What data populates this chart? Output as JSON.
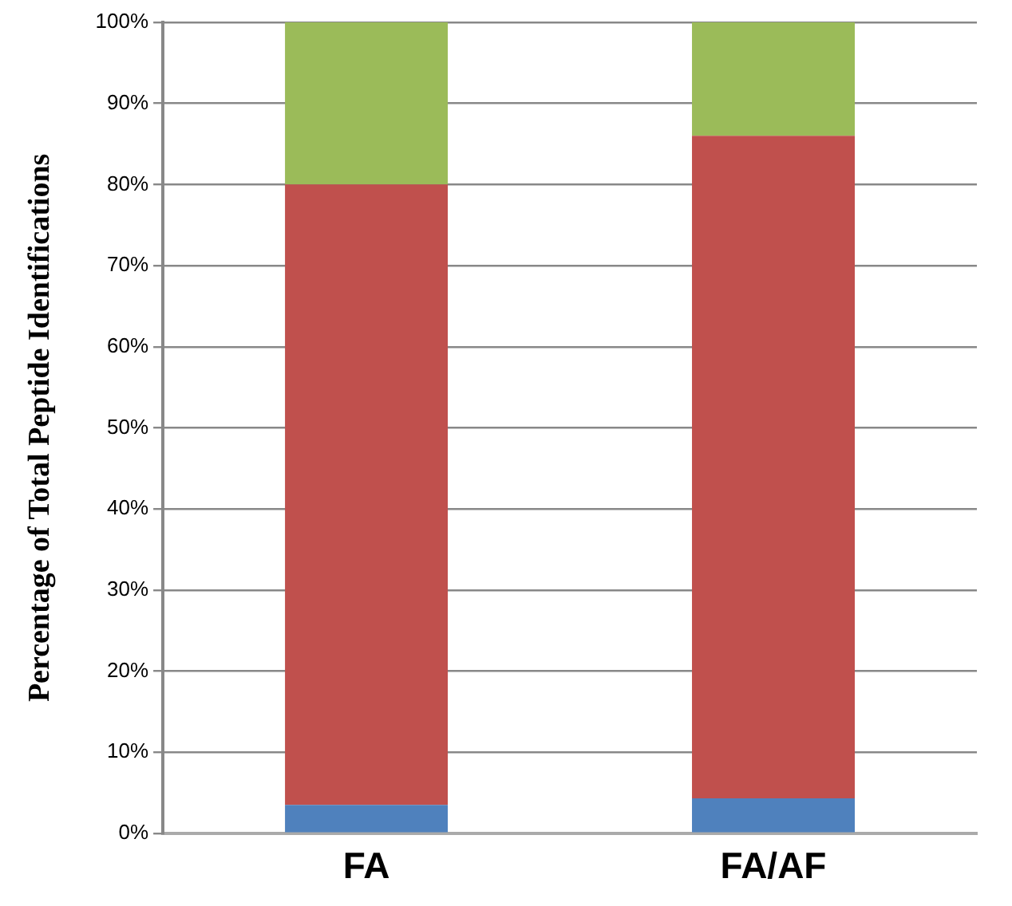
{
  "chart_data": {
    "type": "bar",
    "stacked": true,
    "ylabel": "Percentage of Total Peptide Identifications",
    "categories": [
      "FA",
      "FA/AF"
    ],
    "series": [
      {
        "color": "#4f81bd",
        "values": [
          3.5,
          4.3
        ]
      },
      {
        "color": "#c0504d",
        "values": [
          76.5,
          81.7
        ]
      },
      {
        "color": "#9bbb59",
        "values": [
          20,
          14
        ]
      }
    ],
    "ylim": [
      0,
      100
    ],
    "yticks": [
      {
        "value": 0,
        "label": "0%"
      },
      {
        "value": 10,
        "label": "10%"
      },
      {
        "value": 20,
        "label": "20%"
      },
      {
        "value": 30,
        "label": "30%"
      },
      {
        "value": 40,
        "label": "40%"
      },
      {
        "value": 50,
        "label": "50%"
      },
      {
        "value": 60,
        "label": "60%"
      },
      {
        "value": 70,
        "label": "70%"
      },
      {
        "value": 80,
        "label": "80%"
      },
      {
        "value": 90,
        "label": "90%"
      },
      {
        "value": 100,
        "label": "100%"
      }
    ],
    "grid": "y",
    "legend": false
  }
}
